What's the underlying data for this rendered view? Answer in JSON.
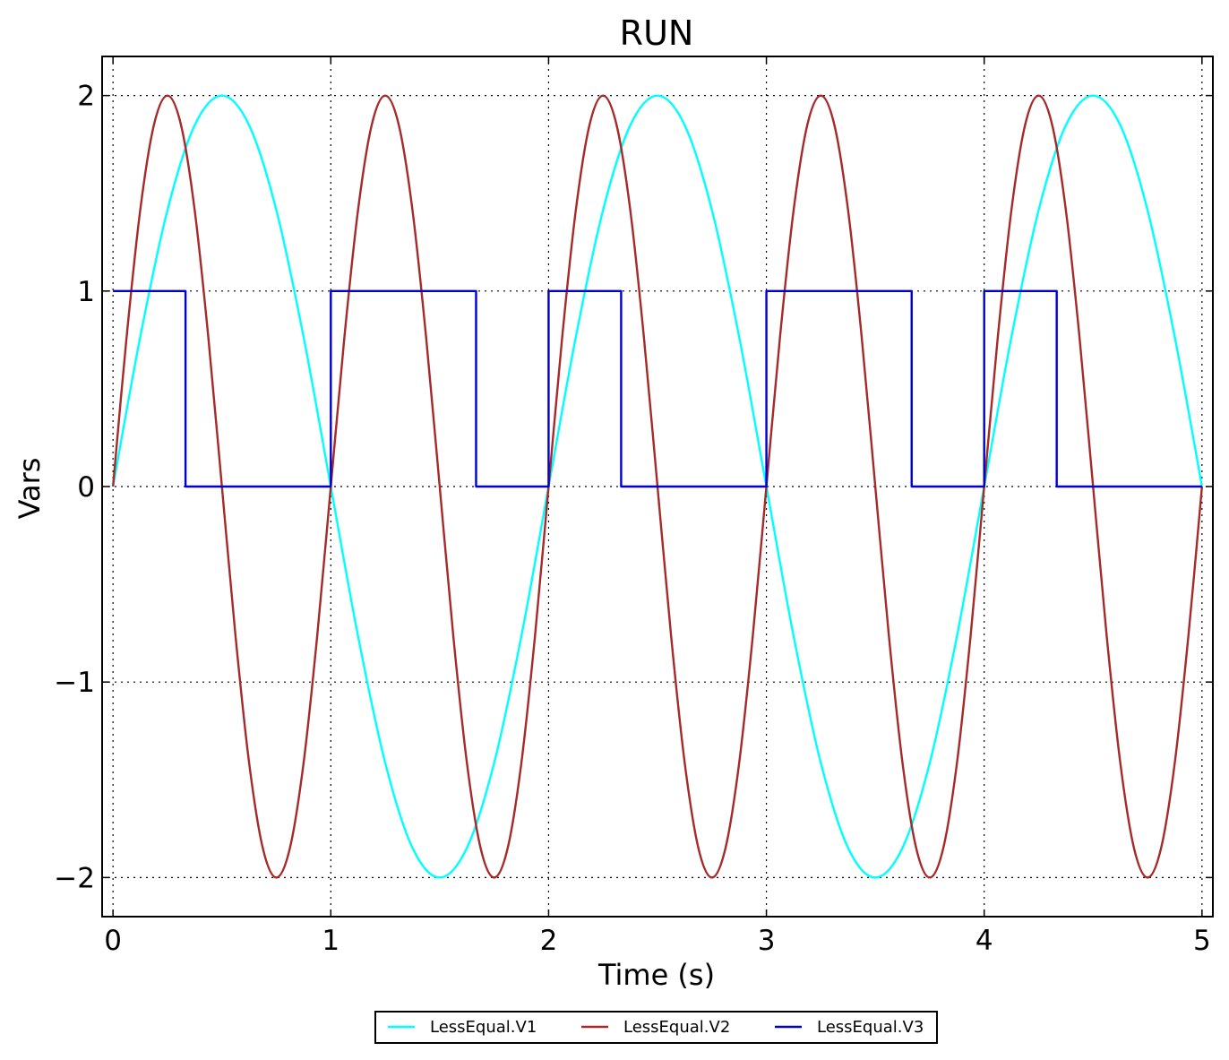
{
  "chart_data": {
    "type": "line",
    "title": "RUN",
    "xlabel": "Time (s)",
    "ylabel": "Vars",
    "xlim": [
      -0.05,
      5.05
    ],
    "ylim": [
      -2.2,
      2.2
    ],
    "xticks": [
      0,
      1,
      2,
      3,
      4,
      5
    ],
    "xtick_labels": [
      "0",
      "1",
      "2",
      "3",
      "4",
      "5"
    ],
    "yticks": [
      -2,
      -1,
      0,
      1,
      2
    ],
    "ytick_labels": [
      "−2",
      "−1",
      "0",
      "1",
      "2"
    ],
    "grid": true,
    "legend_position": "bottom-center, below plot",
    "series": [
      {
        "name": "LessEqual.V1",
        "color": "#00ffff",
        "x": [
          0,
          0.125,
          0.25,
          0.375,
          0.5,
          0.625,
          0.75,
          0.875,
          1.0,
          1.125,
          1.25,
          1.375,
          1.5,
          1.625,
          1.75,
          1.875,
          2.0,
          2.125,
          2.25,
          2.375,
          2.5,
          2.625,
          2.75,
          2.875,
          3.0,
          3.125,
          3.25,
          3.375,
          3.5,
          3.625,
          3.75,
          3.875,
          4.0,
          4.125,
          4.25,
          4.375,
          4.5,
          4.625,
          4.75,
          4.875,
          5.0
        ],
        "y": [
          0,
          0.765,
          1.414,
          1.848,
          2.0,
          1.848,
          1.414,
          0.765,
          0,
          -0.765,
          -1.414,
          -1.848,
          -2.0,
          -1.848,
          -1.414,
          -0.765,
          0,
          0.765,
          1.414,
          1.848,
          2.0,
          1.848,
          1.414,
          0.765,
          0,
          -0.765,
          -1.414,
          -1.848,
          -2.0,
          -1.848,
          -1.414,
          -0.765,
          0,
          0.765,
          1.414,
          1.848,
          2.0,
          1.848,
          1.414,
          0.765,
          0
        ]
      },
      {
        "name": "LessEqual.V2",
        "color": "#a52a2a",
        "x": [
          0,
          0.0625,
          0.125,
          0.1875,
          0.25,
          0.3125,
          0.375,
          0.4375,
          0.5,
          0.5625,
          0.625,
          0.6875,
          0.75,
          0.8125,
          0.875,
          0.9375,
          1.0,
          1.0625,
          1.125,
          1.1875,
          1.25,
          1.3125,
          1.375,
          1.4375,
          1.5,
          1.5625,
          1.625,
          1.6875,
          1.75,
          1.8125,
          1.875,
          1.9375,
          2.0,
          2.0625,
          2.125,
          2.1875,
          2.25,
          2.3125,
          2.375,
          2.4375,
          2.5,
          2.5625,
          2.625,
          2.6875,
          2.75,
          2.8125,
          2.875,
          2.9375,
          3.0,
          3.0625,
          3.125,
          3.1875,
          3.25,
          3.3125,
          3.375,
          3.4375,
          3.5,
          3.5625,
          3.625,
          3.6875,
          3.75,
          3.8125,
          3.875,
          3.9375,
          4.0,
          4.0625,
          4.125,
          4.1875,
          4.25,
          4.3125,
          4.375,
          4.4375,
          4.5,
          4.5625,
          4.625,
          4.6875,
          4.75,
          4.8125,
          4.875,
          4.9375,
          5.0
        ],
        "y": [
          0,
          0.765,
          1.414,
          1.848,
          2.0,
          1.848,
          1.414,
          0.765,
          0,
          -0.765,
          -1.414,
          -1.848,
          -2.0,
          -1.848,
          -1.414,
          -0.765,
          0,
          0.765,
          1.414,
          1.848,
          2.0,
          1.848,
          1.414,
          0.765,
          0,
          -0.765,
          -1.414,
          -1.848,
          -2.0,
          -1.848,
          -1.414,
          -0.765,
          0,
          0.765,
          1.414,
          1.848,
          2.0,
          1.848,
          1.414,
          0.765,
          0,
          -0.765,
          -1.414,
          -1.848,
          -2.0,
          -1.848,
          -1.414,
          -0.765,
          0,
          0.765,
          1.414,
          1.848,
          2.0,
          1.848,
          1.414,
          0.765,
          0,
          -0.765,
          -1.414,
          -1.848,
          -2.0,
          -1.848,
          -1.414,
          -0.765,
          0,
          0.765,
          1.414,
          1.848,
          2.0,
          1.848,
          1.414,
          0.765,
          0,
          -0.765,
          -1.414,
          -1.848,
          -2.0,
          -1.848,
          -1.414,
          -0.765,
          0
        ]
      },
      {
        "name": "LessEqual.V3",
        "color": "#0000cd",
        "step": true,
        "x": [
          0,
          0.333,
          0.333,
          1.0,
          1.0,
          1.667,
          1.667,
          2.0,
          2.0,
          2.333,
          2.333,
          3.0,
          3.0,
          3.667,
          3.667,
          4.0,
          4.0,
          4.333,
          4.333,
          5.0
        ],
        "y": [
          1,
          1,
          0,
          0,
          1,
          1,
          0,
          0,
          1,
          1,
          0,
          0,
          1,
          1,
          0,
          0,
          1,
          1,
          0,
          0
        ]
      }
    ]
  }
}
